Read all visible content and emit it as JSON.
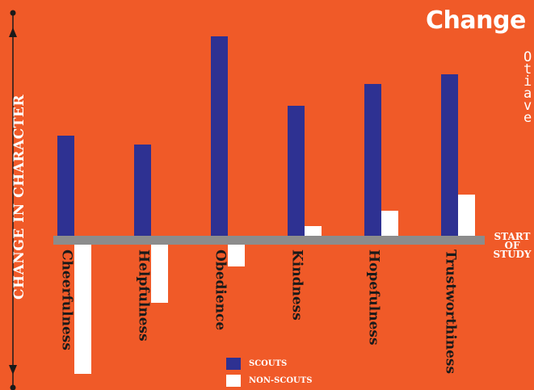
{
  "title": "Change",
  "note_text": "O\nt\ni\na\nv\ne",
  "y_axis_title": "CHANGE IN CHARACTER",
  "baseline_label": "START OF STUDY",
  "colors": {
    "background": "#F05A28",
    "scouts": "#2E3192",
    "non_scouts": "#FFFFFF",
    "baseline": "#8C8C8C"
  },
  "chart_data": {
    "type": "bar",
    "title": "Change",
    "ylabel": "CHANGE IN CHARACTER",
    "baseline_label": "START OF STUDY",
    "categories": [
      "Cheerfulness",
      "Helpfulness",
      "Obedience",
      "Kindness",
      "Hopefulness",
      "Trustworthiness"
    ],
    "series": [
      {
        "name": "SCOUTS",
        "color": "#2E3192",
        "values": [
          124,
          113,
          247,
          161,
          188,
          200
        ]
      },
      {
        "name": "NON-SCOUTS",
        "color": "#FFFFFF",
        "values": [
          -160,
          -72,
          -27,
          12,
          31,
          51
        ]
      }
    ],
    "ylim": [
      -160,
      250
    ],
    "grid": false,
    "legend_position": "bottom-center"
  }
}
